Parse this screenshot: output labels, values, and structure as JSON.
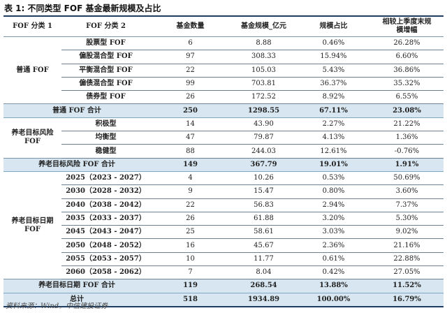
{
  "title": "表 1: 不同类型 FOF 基金最新规模及占比",
  "headers": [
    "FOF 分类 1",
    "FOF 分类 2",
    "基金数量",
    "基金规模_亿元",
    "规模占比",
    "相较上季度末规模增幅"
  ],
  "groups": [
    {
      "name": "普通 FOF",
      "rows": [
        [
          "股票型 FOF",
          "6",
          "8.88",
          "0.46%",
          "26.28%"
        ],
        [
          "偏股混合型 FOF",
          "97",
          "308.33",
          "15.94%",
          "6.60%"
        ],
        [
          "平衡混合型 FOF",
          "22",
          "105.03",
          "5.43%",
          "36.86%"
        ],
        [
          "偏债混合型 FOF",
          "99",
          "703.81",
          "36.37%",
          "35.32%"
        ],
        [
          "债券型 FOF",
          "26",
          "172.52",
          "8.92%",
          "6.55%"
        ]
      ],
      "subtotal": [
        "普通 FOF 合计",
        "250",
        "1298.55",
        "67.11%",
        "23.08%"
      ]
    },
    {
      "name": "养老目标风险 FOF",
      "rows": [
        [
          "积极型",
          "14",
          "43.90",
          "2.27%",
          "21.22%"
        ],
        [
          "均衡型",
          "47",
          "79.87",
          "4.13%",
          "1.36%"
        ],
        [
          "稳健型",
          "88",
          "244.03",
          "12.61%",
          "-0.76%"
        ]
      ],
      "subtotal": [
        "养老目标风险 FOF 合计",
        "149",
        "367.79",
        "19.01%",
        "1.91%"
      ]
    },
    {
      "name": "养老目标日期 FOF",
      "rows": [
        [
          "2025（2023 - 2027）",
          "4",
          "10.26",
          "0.53%",
          "50.69%"
        ],
        [
          "2030（2028 - 2032）",
          "9",
          "15.47",
          "0.80%",
          "3.60%"
        ],
        [
          "2040（2038 - 2042）",
          "22",
          "56.83",
          "2.94%",
          "7.37%"
        ],
        [
          "2035（2033 - 2037）",
          "26",
          "61.88",
          "3.20%",
          "5.30%"
        ],
        [
          "2045（2043 - 2047）",
          "25",
          "58.61",
          "3.03%",
          "9.02%"
        ],
        [
          "2050（2048 - 2052）",
          "16",
          "45.67",
          "2.36%",
          "21.16%"
        ],
        [
          "2055（2053 - 2057）",
          "10",
          "11.77",
          "0.61%",
          "22.88%"
        ],
        [
          "2060（2058 - 2062）",
          "7",
          "8.04",
          "0.42%",
          "27.05%"
        ]
      ],
      "subtotal": [
        "养老目标日期 FOF 合计",
        "119",
        "268.54",
        "13.88%",
        "11.52%"
      ]
    }
  ],
  "total": [
    "总计",
    "518",
    "1934.89",
    "100.00%",
    "16.79%"
  ],
  "source": "资料来源：Wind，中信建投证券"
}
